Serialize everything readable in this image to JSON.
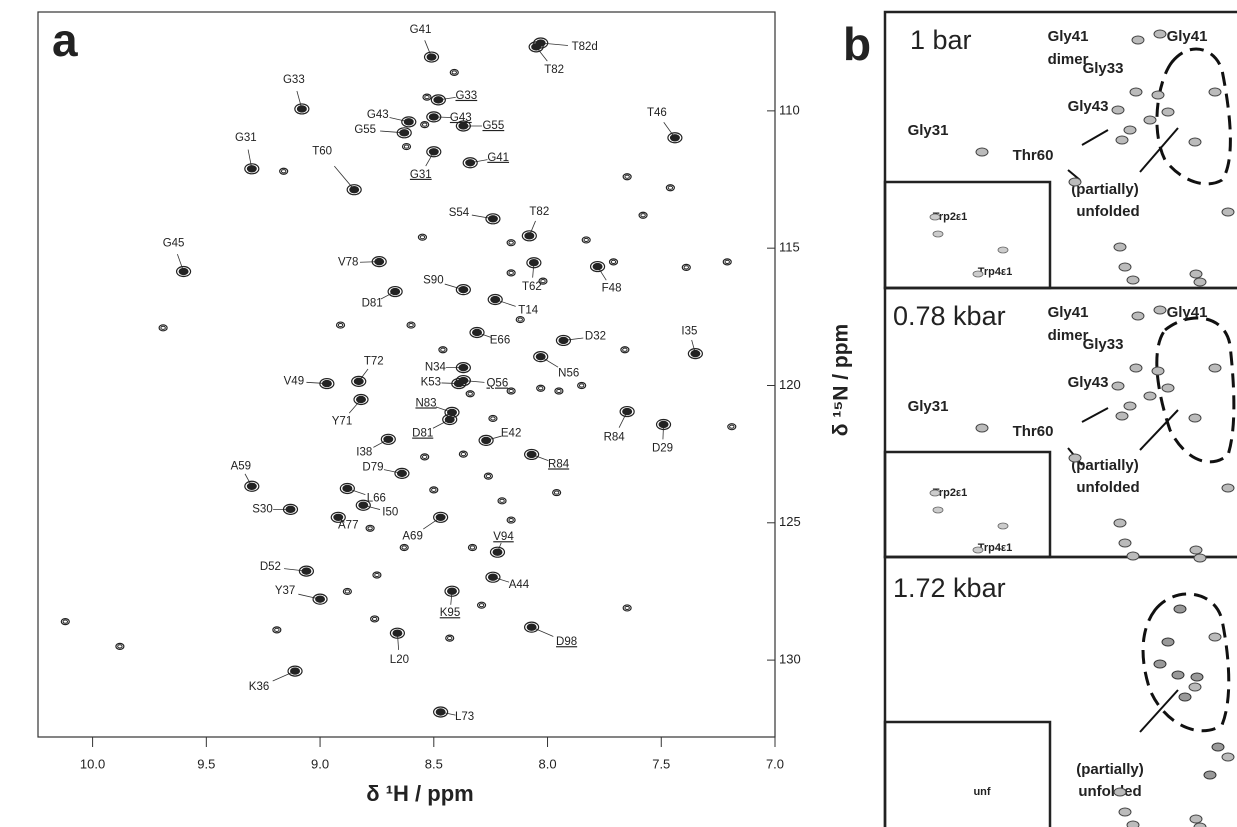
{
  "chart_data": {
    "type": "scatter",
    "panel_label": "a",
    "x_label": "δ ¹H / ppm",
    "y_label": "δ ¹⁵N / ppm",
    "xlim": [
      10.24,
      7.0
    ],
    "ylim": [
      106.4,
      132.8
    ],
    "xticks": [
      {
        "value": 10,
        "label": "10.0"
      },
      9.5,
      {
        "value": 9,
        "label": "9.0"
      },
      8.5,
      {
        "value": 8,
        "label": "8.0"
      },
      7.5,
      {
        "value": 7,
        "label": "7.0"
      }
    ],
    "yticks": [
      110,
      115,
      120,
      125,
      130
    ],
    "color": "#222222",
    "peaks": [
      {
        "label": "G41",
        "x": 8.51,
        "y": 108.04
      },
      {
        "label": "T82d",
        "x": 8.03,
        "y": 107.53
      },
      {
        "label": "T82",
        "x": 8.05,
        "y": 107.67
      },
      {
        "label": "G33",
        "x": 9.08,
        "y": 109.93
      },
      {
        "label": "G43",
        "x": 8.61,
        "y": 110.4
      },
      {
        "label": "G55",
        "x": 8.63,
        "y": 110.8
      },
      {
        "label": "T60",
        "x": 8.85,
        "y": 112.87
      },
      {
        "label": "G31",
        "x": 9.3,
        "y": 112.11
      },
      {
        "label": "G33",
        "x": 8.48,
        "y": 109.6,
        "underlined": true
      },
      {
        "label": "G43",
        "x": 8.5,
        "y": 110.22,
        "underlined": true
      },
      {
        "label": "G55",
        "x": 8.37,
        "y": 110.55,
        "underlined": true
      },
      {
        "label": "G41",
        "x": 8.34,
        "y": 111.89,
        "underlined": true
      },
      {
        "label": "G31",
        "x": 8.5,
        "y": 111.49,
        "underlined": true
      },
      {
        "label": "T46",
        "x": 7.44,
        "y": 110.98
      },
      {
        "label": "G45",
        "x": 9.6,
        "y": 115.85
      },
      {
        "label": "S54",
        "x": 8.24,
        "y": 113.93
      },
      {
        "label": "T82",
        "x": 8.08,
        "y": 114.55
      },
      {
        "label": "V78",
        "x": 8.74,
        "y": 115.49
      },
      {
        "label": "S90",
        "x": 8.37,
        "y": 116.51
      },
      {
        "label": "T62",
        "x": 8.06,
        "y": 115.53
      },
      {
        "label": "F48",
        "x": 7.78,
        "y": 115.67
      },
      {
        "label": "D81",
        "x": 8.67,
        "y": 116.58
      },
      {
        "label": "T14",
        "x": 8.23,
        "y": 116.87
      },
      {
        "label": "D32",
        "x": 7.93,
        "y": 118.36
      },
      {
        "label": "E66",
        "x": 8.31,
        "y": 118.07
      },
      {
        "label": "I35",
        "x": 7.35,
        "y": 118.84
      },
      {
        "label": "N34",
        "x": 8.37,
        "y": 119.35
      },
      {
        "label": "K53",
        "x": 8.39,
        "y": 119.93
      },
      {
        "label": "Q56",
        "x": 8.37,
        "y": 119.82,
        "underlined": true
      },
      {
        "label": "N56",
        "x": 8.03,
        "y": 118.95
      },
      {
        "label": "T72",
        "x": 8.83,
        "y": 119.85
      },
      {
        "label": "V49",
        "x": 8.97,
        "y": 119.93
      },
      {
        "label": "Y71",
        "x": 8.82,
        "y": 120.51
      },
      {
        "label": "N83",
        "x": 8.42,
        "y": 120.98,
        "underlined": true
      },
      {
        "label": "R84",
        "x": 7.65,
        "y": 120.95
      },
      {
        "label": "D81",
        "x": 8.43,
        "y": 121.24,
        "underlined": true
      },
      {
        "label": "D29",
        "x": 7.49,
        "y": 121.42
      },
      {
        "label": "I38",
        "x": 8.7,
        "y": 121.96
      },
      {
        "label": "E42",
        "x": 8.27,
        "y": 122.0
      },
      {
        "label": "D79",
        "x": 8.64,
        "y": 123.2
      },
      {
        "label": "R84",
        "x": 8.07,
        "y": 122.51,
        "underlined": true
      },
      {
        "label": "A59",
        "x": 9.3,
        "y": 123.67
      },
      {
        "label": "L66",
        "x": 8.88,
        "y": 123.75
      },
      {
        "label": "S30",
        "x": 9.13,
        "y": 124.51
      },
      {
        "label": "I50",
        "x": 8.81,
        "y": 124.36
      },
      {
        "label": "A77",
        "x": 8.92,
        "y": 124.8
      },
      {
        "label": "A69",
        "x": 8.47,
        "y": 124.8
      },
      {
        "label": "V94",
        "x": 8.22,
        "y": 126.07,
        "underlined": true
      },
      {
        "label": "D52",
        "x": 9.06,
        "y": 126.76
      },
      {
        "label": "A44",
        "x": 8.24,
        "y": 126.98
      },
      {
        "label": "Y37",
        "x": 9.0,
        "y": 127.78
      },
      {
        "label": "K95",
        "x": 8.42,
        "y": 127.49,
        "underlined": true
      },
      {
        "label": "D98",
        "x": 8.07,
        "y": 128.8,
        "underlined": true
      },
      {
        "label": "L20",
        "x": 8.66,
        "y": 129.02
      },
      {
        "label": "K36",
        "x": 9.11,
        "y": 130.4
      },
      {
        "label": "L73",
        "x": 8.47,
        "y": 131.89
      }
    ],
    "other_peaks": {
      "x": [
        8.41,
        8.53,
        8.54,
        8.62,
        9.16,
        7.65,
        7.46,
        7.58,
        8.55,
        8.16,
        7.83,
        7.39,
        7.21,
        7.71,
        8.16,
        8.02,
        8.91,
        8.6,
        8.46,
        8.12,
        7.66,
        8.03,
        7.95,
        7.85,
        8.16,
        7.19,
        8.34,
        8.24,
        8.37,
        8.54,
        8.26,
        7.96,
        8.78,
        8.63,
        8.33,
        8.16,
        8.88,
        8.75,
        8.29,
        7.65,
        9.19,
        10.12,
        9.88,
        9.69,
        8.76,
        8.43,
        8.2,
        8.5
      ],
      "y": [
        108.6,
        109.5,
        110.5,
        111.3,
        112.2,
        112.4,
        112.8,
        113.8,
        114.6,
        114.8,
        114.7,
        115.7,
        115.5,
        115.5,
        115.9,
        116.2,
        117.8,
        117.8,
        118.7,
        117.6,
        118.7,
        120.1,
        120.2,
        120.0,
        120.2,
        121.5,
        120.3,
        121.2,
        122.5,
        122.6,
        123.3,
        123.9,
        125.2,
        125.9,
        125.9,
        124.9,
        127.5,
        126.9,
        128.0,
        128.1,
        128.9,
        128.6,
        129.5,
        117.9,
        128.5,
        129.2,
        124.2,
        123.8
      ]
    }
  },
  "panel_b": {
    "panel_label": "b",
    "panels": [
      {
        "pressure": "1 bar",
        "labels": [
          "Gly41",
          "dimer",
          "Gly41",
          "Gly33",
          "Gly43",
          "Gly31",
          "Thr60",
          "(partially)",
          "unfolded"
        ],
        "inset_labels": [
          "Trp2ε1",
          "Trp4ε1"
        ]
      },
      {
        "pressure": "0.78 kbar",
        "labels": [
          "Gly41",
          "dimer",
          "Gly41",
          "Gly33",
          "Gly43",
          "Gly31",
          "Thr60",
          "(partially)",
          "unfolded"
        ],
        "inset_labels": [
          "Trp2ε1",
          "Trp4ε1"
        ]
      },
      {
        "pressure": "1.72 kbar",
        "labels": [
          "(partially)",
          "unfolded"
        ],
        "inset_labels": [
          "unf"
        ]
      }
    ]
  }
}
